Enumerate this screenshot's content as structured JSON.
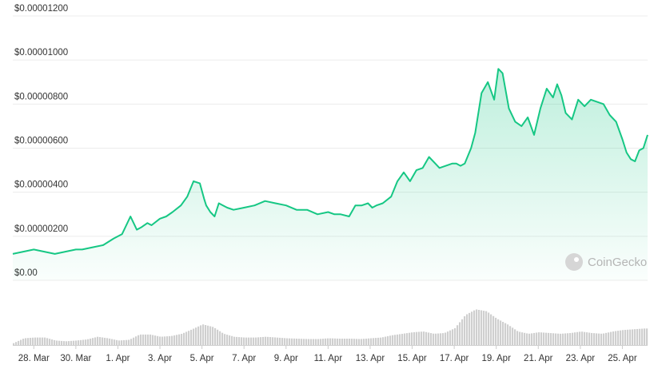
{
  "chart_data": {
    "type": "area",
    "y_tick_labels": [
      "$0.00",
      "$0.00000200",
      "$0.00000400",
      "$0.00000600",
      "$0.00000800",
      "$0.00001000",
      "$0.00001200"
    ],
    "y_tick_values": [
      0,
      2e-06,
      4e-06,
      6e-06,
      8e-06,
      1e-05,
      1.2e-05
    ],
    "ylim": [
      0,
      1.2e-05
    ],
    "x_tick_labels": [
      "28. Mar",
      "30. Mar",
      "1. Apr",
      "3. Apr",
      "5. Apr",
      "7. Apr",
      "9. Apr",
      "11. Apr",
      "13. Apr",
      "15. Apr",
      "17. Apr",
      "19. Apr",
      "21. Apr",
      "23. Apr",
      "25. Apr"
    ],
    "x_tick_days": [
      1,
      3,
      5,
      7,
      9,
      11,
      13,
      15,
      17,
      19,
      21,
      23,
      25,
      27,
      29
    ],
    "xlim_days": [
      0,
      30.2
    ],
    "grid": true,
    "line_color": "#16c784",
    "price_series": {
      "days": [
        0,
        0.5,
        1,
        1.5,
        2,
        2.5,
        3,
        3.3,
        3.8,
        4.3,
        4.8,
        5.2,
        5.6,
        5.9,
        6.1,
        6.4,
        6.6,
        7,
        7.3,
        7.6,
        8.0,
        8.3,
        8.6,
        8.9,
        9.1,
        9.2,
        9.4,
        9.6,
        9.8,
        10,
        10.2,
        10.5,
        11,
        11.5,
        12,
        12.5,
        13,
        13.5,
        14,
        14.5,
        15,
        15.3,
        15.6,
        16,
        16.3,
        16.6,
        16.9,
        17.1,
        17.3,
        17.6,
        18,
        18.3,
        18.6,
        18.9,
        19.2,
        19.5,
        19.8,
        20.1,
        20.3,
        20.6,
        20.9,
        21.1,
        21.3,
        21.5,
        21.8,
        22.0,
        22.3,
        22.6,
        22.9,
        23.1,
        23.3,
        23.6,
        23.9,
        24.2,
        24.5,
        24.8,
        25.1,
        25.4,
        25.7,
        25.9,
        26.1,
        26.3,
        26.6,
        26.9,
        27.2,
        27.5,
        27.8,
        28.1,
        28.4,
        28.7,
        29.0,
        29.2,
        29.4,
        29.6,
        29.8,
        30.0,
        30.2
      ],
      "values": [
        1.2e-06,
        1.3e-06,
        1.4e-06,
        1.3e-06,
        1.2e-06,
        1.3e-06,
        1.4e-06,
        1.4e-06,
        1.5e-06,
        1.6e-06,
        1.9e-06,
        2.1e-06,
        2.9e-06,
        2.3e-06,
        2.4e-06,
        2.6e-06,
        2.5e-06,
        2.8e-06,
        2.9e-06,
        3.1e-06,
        3.4e-06,
        3.8e-06,
        4.5e-06,
        4.4e-06,
        3.7e-06,
        3.4e-06,
        3.1e-06,
        2.9e-06,
        3.5e-06,
        3.4e-06,
        3.3e-06,
        3.2e-06,
        3.3e-06,
        3.4e-06,
        3.6e-06,
        3.5e-06,
        3.4e-06,
        3.2e-06,
        3.2e-06,
        3e-06,
        3.1e-06,
        3e-06,
        3e-06,
        2.9e-06,
        3.4e-06,
        3.4e-06,
        3.5e-06,
        3.3e-06,
        3.4e-06,
        3.5e-06,
        3.8e-06,
        4.5e-06,
        4.9e-06,
        4.5e-06,
        5e-06,
        5.1e-06,
        5.6e-06,
        5.3e-06,
        5.1e-06,
        5.2e-06,
        5.3e-06,
        5.3e-06,
        5.2e-06,
        5.3e-06,
        6e-06,
        6.7e-06,
        8.5e-06,
        9e-06,
        8.2e-06,
        9.6e-06,
        9.4e-06,
        7.8e-06,
        7.2e-06,
        7e-06,
        7.4e-06,
        6.6e-06,
        7.8e-06,
        8.7e-06,
        8.3e-06,
        8.9e-06,
        8.4e-06,
        7.6e-06,
        7.3e-06,
        8.2e-06,
        7.9e-06,
        8.2e-06,
        8.1e-06,
        8e-06,
        7.5e-06,
        7.2e-06,
        6.4e-06,
        5.8e-06,
        5.5e-06,
        5.4e-06,
        5.9e-06,
        6e-06,
        6.6e-06
      ]
    },
    "volume_series": {
      "days": [
        0,
        0.5,
        1,
        1.5,
        2,
        2.5,
        3,
        3.5,
        4,
        4.5,
        5,
        5.5,
        6,
        6.5,
        7,
        7.5,
        8,
        8.5,
        9,
        9.5,
        10,
        10.5,
        11,
        11.5,
        12,
        12.5,
        13,
        13.5,
        14,
        14.5,
        15,
        15.5,
        16,
        16.5,
        17,
        17.5,
        18,
        18.5,
        19,
        19.5,
        20,
        20.5,
        21,
        21.5,
        22,
        22.5,
        23,
        23.5,
        24,
        24.5,
        25,
        25.5,
        26,
        26.5,
        27,
        27.5,
        28,
        28.5,
        29,
        29.5,
        30
      ],
      "relative_heights": [
        0.05,
        0.18,
        0.2,
        0.2,
        0.12,
        0.1,
        0.12,
        0.15,
        0.22,
        0.18,
        0.12,
        0.14,
        0.28,
        0.28,
        0.22,
        0.24,
        0.3,
        0.42,
        0.55,
        0.48,
        0.3,
        0.22,
        0.2,
        0.2,
        0.22,
        0.2,
        0.18,
        0.17,
        0.16,
        0.16,
        0.18,
        0.17,
        0.17,
        0.16,
        0.18,
        0.2,
        0.26,
        0.3,
        0.34,
        0.36,
        0.3,
        0.32,
        0.45,
        0.8,
        0.95,
        0.9,
        0.7,
        0.55,
        0.36,
        0.3,
        0.34,
        0.32,
        0.3,
        0.32,
        0.36,
        0.32,
        0.3,
        0.36,
        0.4,
        0.42,
        0.44
      ]
    }
  },
  "watermark": {
    "label": "CoinGecko",
    "icon": "gecko-logo-icon"
  }
}
